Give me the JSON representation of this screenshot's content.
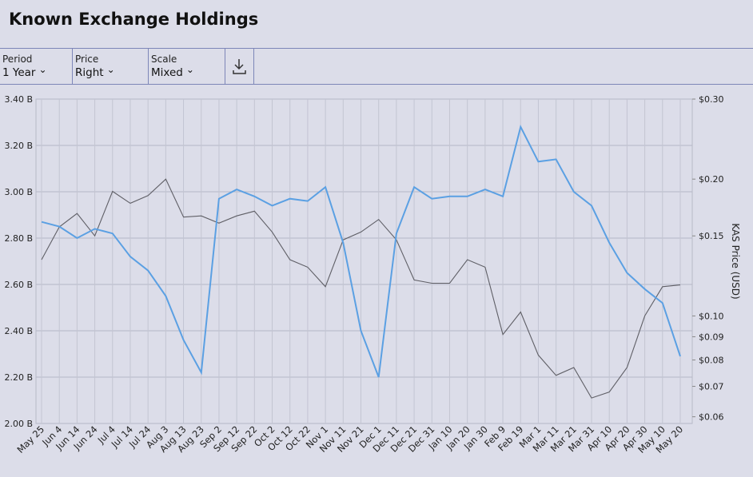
{
  "controls": [
    {
      "label": "Period",
      "value": "1 Year"
    },
    {
      "label": "Price",
      "value": "Right"
    },
    {
      "label": "Scale",
      "value": "Mixed"
    }
  ],
  "chart_data": {
    "type": "line",
    "title": "Known Exchange Holdings",
    "categories": [
      "May 25",
      "Jun 4",
      "Jun 14",
      "Jun 24",
      "Jul 4",
      "Jul 14",
      "Jul 24",
      "Aug 3",
      "Aug 13",
      "Aug 23",
      "Sep 2",
      "Sep 12",
      "Sep 22",
      "Oct 2",
      "Oct 12",
      "Oct 22",
      "Nov 1",
      "Nov 11",
      "Nov 21",
      "Dec 1",
      "Dec 11",
      "Dec 21",
      "Dec 31",
      "Jan 10",
      "Jan 20",
      "Jan 30",
      "Feb 9",
      "Feb 19",
      "Mar 1",
      "Mar 11",
      "Mar 21",
      "Mar 31",
      "Apr 10",
      "Apr 20",
      "Apr 30",
      "May 10",
      "May 20"
    ],
    "series": [
      {
        "color": "#5ba0e3",
        "values": [
          2.87,
          2.85,
          2.8,
          2.84,
          2.82,
          2.72,
          2.66,
          2.55,
          2.36,
          2.22,
          2.97,
          3.01,
          2.98,
          2.94,
          2.97,
          2.96,
          3.02,
          2.78,
          2.4,
          2.2,
          2.82,
          3.02,
          2.97,
          2.98,
          2.98,
          3.01,
          2.98,
          3.28,
          3.13,
          3.14,
          3.0,
          2.94,
          2.78,
          2.65,
          2.58,
          2.52,
          2.29
        ]
      },
      {
        "color": "#5f5f66",
        "axis": "y2",
        "values": [
          0.133,
          0.157,
          0.168,
          0.15,
          0.188,
          0.177,
          0.184,
          0.2,
          0.165,
          0.166,
          0.16,
          0.166,
          0.17,
          0.153,
          0.133,
          0.128,
          0.116,
          0.147,
          0.153,
          0.163,
          0.147,
          0.12,
          0.118,
          0.118,
          0.133,
          0.128,
          0.091,
          0.102,
          0.082,
          0.074,
          0.077,
          0.066,
          0.068,
          0.077,
          0.1,
          0.116,
          0.117
        ]
      }
    ],
    "ylim": [
      2.0,
      3.4
    ],
    "yticks": [
      {
        "value": 2.0,
        "label": "2.00 B"
      },
      {
        "value": 2.2,
        "label": "2.20 B"
      },
      {
        "value": 2.4,
        "label": "2.40 B"
      },
      {
        "value": 2.6,
        "label": "2.60 B"
      },
      {
        "value": 2.8,
        "label": "2.80 B"
      },
      {
        "value": 3.0,
        "label": "3.00 B"
      },
      {
        "value": 3.2,
        "label": "3.20 B"
      },
      {
        "value": 3.4,
        "label": "3.40 B"
      }
    ],
    "y2lim": [
      0.058,
      0.3
    ],
    "y2log": true,
    "y2ticks": [
      {
        "value": 0.06,
        "label": "$0.06"
      },
      {
        "value": 0.07,
        "label": "$0.07"
      },
      {
        "value": 0.08,
        "label": "$0.08"
      },
      {
        "value": 0.09,
        "label": "$0.09"
      },
      {
        "value": 0.1,
        "label": "$0.10"
      },
      {
        "value": 0.15,
        "label": "$0.15"
      },
      {
        "value": 0.2,
        "label": "$0.20"
      },
      {
        "value": 0.3,
        "label": "$0.30"
      }
    ],
    "y2label": "KAS Price (USD)",
    "grid": true
  }
}
